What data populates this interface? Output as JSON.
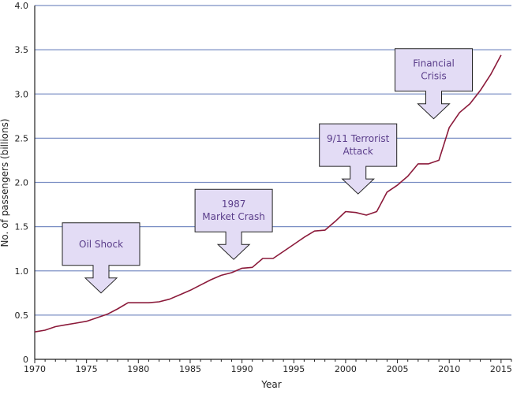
{
  "chart_data": {
    "type": "line",
    "title": "",
    "xlabel": "Year",
    "ylabel": "No. of passengers (billions)",
    "xlim": [
      1970,
      2016
    ],
    "ylim": [
      0,
      4.0
    ],
    "xticks": [
      1970,
      1975,
      1980,
      1985,
      1990,
      1995,
      2000,
      2005,
      2010,
      2015
    ],
    "yticks": [
      "0",
      "0.5",
      "1.0",
      "1.5",
      "2.0",
      "2.5",
      "3.0",
      "3.5",
      "4.0"
    ],
    "grid": "horizontal",
    "series": [
      {
        "name": "Passengers",
        "color": "#8b1a3a",
        "x": [
          1970,
          1971,
          1972,
          1973,
          1974,
          1975,
          1976,
          1977,
          1978,
          1979,
          1980,
          1981,
          1982,
          1983,
          1984,
          1985,
          1986,
          1987,
          1988,
          1989,
          1990,
          1991,
          1992,
          1993,
          1994,
          1995,
          1996,
          1997,
          1998,
          1999,
          2000,
          2001,
          2002,
          2003,
          2004,
          2005,
          2006,
          2007,
          2008,
          2009,
          2010,
          2011,
          2012,
          2013,
          2014,
          2015
        ],
        "y": [
          0.31,
          0.33,
          0.37,
          0.39,
          0.41,
          0.43,
          0.47,
          0.51,
          0.57,
          0.64,
          0.64,
          0.64,
          0.65,
          0.68,
          0.73,
          0.78,
          0.84,
          0.9,
          0.95,
          0.98,
          1.03,
          1.04,
          1.14,
          1.14,
          1.22,
          1.3,
          1.38,
          1.45,
          1.46,
          1.56,
          1.67,
          1.66,
          1.63,
          1.67,
          1.89,
          1.97,
          2.07,
          2.21,
          2.21,
          2.25,
          2.62,
          2.79,
          2.89,
          3.04,
          3.22,
          3.44
        ]
      }
    ],
    "annotations": [
      {
        "label": "Oil Shock",
        "lines": [
          "Oil Shock"
        ],
        "year": 1976.4,
        "value": 0.75
      },
      {
        "label": "1987 Market Crash",
        "lines": [
          "1987",
          "Market Crash"
        ],
        "year": 1989.2,
        "value": 1.13
      },
      {
        "label": "9/11 Terrorist Attack",
        "lines": [
          "9/11 Terrorist",
          "Attack"
        ],
        "year": 2001.2,
        "value": 1.87
      },
      {
        "label": "Financial Crisis",
        "lines": [
          "Financial",
          "Crisis"
        ],
        "year": 2008.5,
        "value": 2.72
      }
    ],
    "colors": {
      "line": "#8b1a3a",
      "grid": "#7b8fc4",
      "callout_fill": "#e3dcf5",
      "callout_text": "#5a3d8a",
      "axis": "#222222"
    }
  }
}
